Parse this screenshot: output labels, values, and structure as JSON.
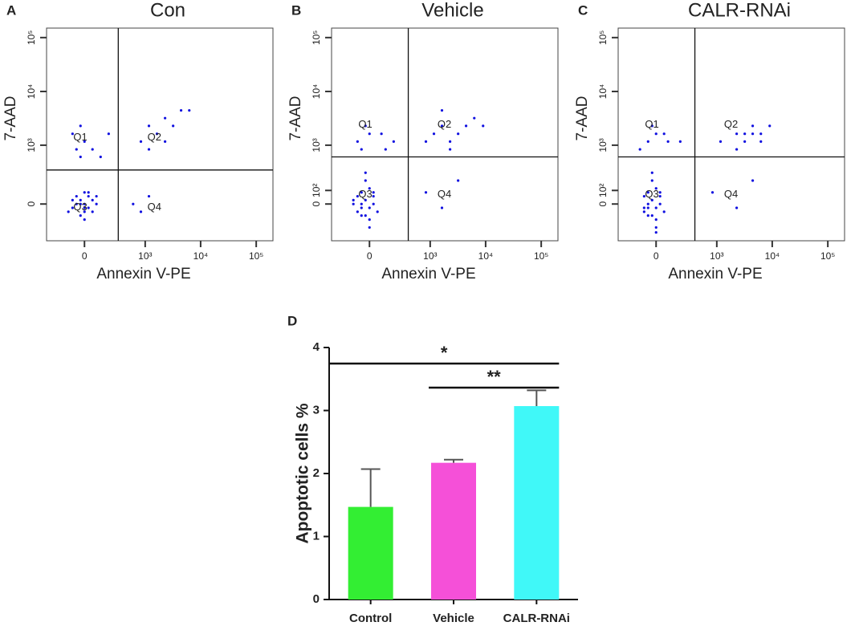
{
  "chart_data": [
    {
      "type": "scatter",
      "panel": "A",
      "title": "Con",
      "xlabel": "Annexin V-PE",
      "ylabel": "7-AAD",
      "color": "#1010e0",
      "xscale": "biexponential",
      "yscale": "biexponential",
      "xlim": [
        -375,
        200000
      ],
      "ylim": [
        -375,
        150000
      ],
      "xticks": [
        0,
        {
          "value": 1000,
          "label": "10³"
        },
        {
          "value": 10000,
          "label": "10⁴"
        },
        {
          "value": 100000,
          "label": "10⁵"
        }
      ],
      "yticks": [
        0,
        {
          "value": 1000,
          "label": "10³"
        },
        {
          "value": 10000,
          "label": "10⁴"
        },
        {
          "value": 100000,
          "label": "10⁵"
        }
      ],
      "gates": {
        "x": 310,
        "y": 330
      },
      "quadrant_labels": [
        "Q1",
        "Q2",
        "Q3",
        "Q4"
      ],
      "x": [
        -55,
        -27,
        0,
        27,
        55,
        -84,
        84,
        -117,
        0,
        -27,
        27,
        -55,
        55,
        0,
        -84,
        84,
        0,
        -27,
        27,
        0,
        -55,
        0,
        117,
        -27,
        192,
        835,
        1170,
        1635,
        2290,
        3200,
        4450,
        6250,
        1170,
        2290,
        600,
        1170,
        835,
        -27,
        55,
        -84
      ],
      "y": [
        0,
        27,
        -27,
        55,
        -55,
        27,
        0,
        -55,
        84,
        -84,
        -27,
        55,
        27,
        -117,
        -27,
        55,
        0,
        0,
        84,
        -55,
        835,
        1170,
        600,
        2290,
        1635,
        1170,
        2290,
        1635,
        3200,
        2290,
        4450,
        4450,
        835,
        1170,
        0,
        55,
        -55,
        600,
        835,
        1635
      ]
    },
    {
      "type": "scatter",
      "panel": "B",
      "title": "Vehicle",
      "xlabel": "Annexin V-PE",
      "ylabel": "7-AAD",
      "color": "#1010e0",
      "xscale": "biexponential",
      "yscale": "biexponential",
      "xlim": [
        -375,
        200000
      ],
      "ylim": [
        -375,
        150000
      ],
      "xticks": [
        0,
        {
          "value": 1000,
          "label": "10³"
        },
        {
          "value": 10000,
          "label": "10⁴"
        },
        {
          "value": 100000,
          "label": "10⁵"
        }
      ],
      "yticks": [
        0,
        {
          "value": 100,
          "label": "10²"
        },
        {
          "value": 1000,
          "label": "10³"
        },
        {
          "value": 10000,
          "label": "10⁴"
        },
        {
          "value": 100000,
          "label": "10⁵"
        }
      ],
      "gates": {
        "x": 390,
        "y": 600
      },
      "quadrant_labels": [
        "Q1",
        "Q2",
        "Q3",
        "Q4"
      ],
      "x": [
        -55,
        -27,
        0,
        27,
        -84,
        -117,
        -55,
        0,
        -27,
        27,
        -84,
        0,
        -55,
        -27,
        55,
        0,
        -117,
        -27,
        27,
        -55,
        -84,
        0,
        117,
        -27,
        192,
        1170,
        1635,
        2290,
        3200,
        4450,
        6250,
        9000,
        1635,
        835,
        2290,
        835,
        1635,
        3200,
        -55,
        84
      ],
      "y": [
        0,
        27,
        -27,
        55,
        -55,
        27,
        84,
        -117,
        -84,
        0,
        55,
        117,
        -27,
        192,
        -55,
        -192,
        0,
        289,
        84,
        -84,
        1170,
        1635,
        835,
        2290,
        1170,
        1635,
        2290,
        1170,
        1635,
        2290,
        3200,
        2290,
        4450,
        1170,
        835,
        84,
        -27,
        192,
        835,
        1635
      ]
    },
    {
      "type": "scatter",
      "panel": "C",
      "title": "CALR-RNAi",
      "xlabel": "Annexin V-PE",
      "ylabel": "7-AAD",
      "color": "#1010e0",
      "xscale": "biexponential",
      "yscale": "biexponential",
      "xlim": [
        -375,
        200000
      ],
      "ylim": [
        -375,
        150000
      ],
      "xticks": [
        0,
        {
          "value": 1000,
          "label": "10³"
        },
        {
          "value": 10000,
          "label": "10⁴"
        },
        {
          "value": 100000,
          "label": "10⁵"
        }
      ],
      "yticks": [
        0,
        {
          "value": 100,
          "label": "10²"
        },
        {
          "value": 1000,
          "label": "10³"
        },
        {
          "value": 10000,
          "label": "10⁴"
        },
        {
          "value": 100000,
          "label": "10⁵"
        }
      ],
      "gates": {
        "x": 390,
        "y": 600
      },
      "quadrant_labels": [
        "Q1",
        "Q2",
        "Q3",
        "Q4"
      ],
      "x": [
        -55,
        -27,
        0,
        27,
        -84,
        -55,
        0,
        -27,
        27,
        -84,
        0,
        -55,
        -27,
        55,
        0,
        -27,
        27,
        -55,
        -84,
        0,
        -117,
        0,
        84,
        -27,
        192,
        1170,
        2290,
        3200,
        4450,
        6250,
        4450,
        6250,
        9000,
        3200,
        2290,
        835,
        2290,
        4450,
        -55,
        55
      ],
      "y": [
        0,
        27,
        -27,
        55,
        -55,
        84,
        -117,
        -84,
        0,
        55,
        117,
        -27,
        192,
        -55,
        -192,
        289,
        84,
        -84,
        -27,
        -250,
        835,
        1635,
        1170,
        2290,
        1170,
        1170,
        1635,
        1170,
        1635,
        1635,
        2290,
        1170,
        2290,
        1635,
        835,
        84,
        -27,
        192,
        1170,
        1635
      ]
    },
    {
      "type": "bar",
      "panel": "D",
      "ylabel": "Apoptotic cells %",
      "categories": [
        "Control",
        "Vehicle",
        "CALR-RNAi"
      ],
      "values": [
        1.47,
        2.17,
        3.07
      ],
      "errors": [
        0.6,
        0.05,
        0.25
      ],
      "colors": [
        "#33ee33",
        "#f550d8",
        "#40f8f8"
      ],
      "ylim": [
        0,
        4
      ],
      "yticks": [
        0,
        1,
        2,
        3,
        4
      ],
      "annotations": [
        {
          "text": "*",
          "from": 0,
          "to": 2
        },
        {
          "text": "**",
          "from": 1,
          "to": 2
        }
      ]
    }
  ]
}
